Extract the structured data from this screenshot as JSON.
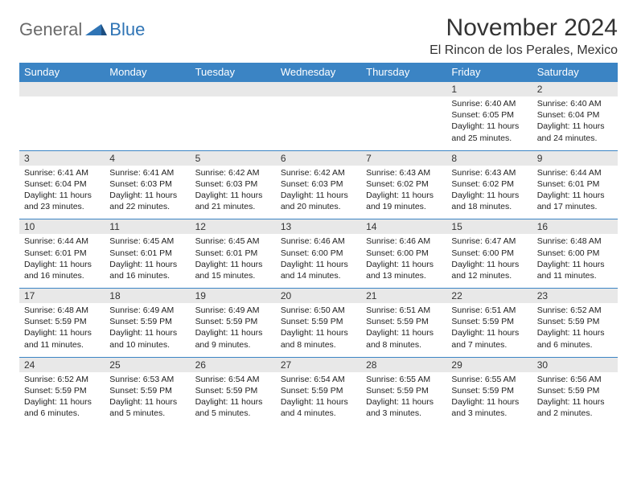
{
  "logo": {
    "general": "General",
    "blue": "Blue"
  },
  "title": "November 2024",
  "location": "El Rincon de los Perales, Mexico",
  "colors": {
    "header_bg": "#3b84c4",
    "header_fg": "#ffffff",
    "daynum_bg": "#e8e8e8",
    "row_border": "#3b84c4",
    "text": "#222222",
    "logo_gray": "#6a6a6a",
    "logo_blue": "#2f74b5",
    "page_bg": "#ffffff"
  },
  "dayNames": [
    "Sunday",
    "Monday",
    "Tuesday",
    "Wednesday",
    "Thursday",
    "Friday",
    "Saturday"
  ],
  "weeks": [
    [
      {
        "n": "",
        "sunrise": "",
        "sunset": "",
        "daylight": ""
      },
      {
        "n": "",
        "sunrise": "",
        "sunset": "",
        "daylight": ""
      },
      {
        "n": "",
        "sunrise": "",
        "sunset": "",
        "daylight": ""
      },
      {
        "n": "",
        "sunrise": "",
        "sunset": "",
        "daylight": ""
      },
      {
        "n": "",
        "sunrise": "",
        "sunset": "",
        "daylight": ""
      },
      {
        "n": "1",
        "sunrise": "Sunrise: 6:40 AM",
        "sunset": "Sunset: 6:05 PM",
        "daylight": "Daylight: 11 hours and 25 minutes."
      },
      {
        "n": "2",
        "sunrise": "Sunrise: 6:40 AM",
        "sunset": "Sunset: 6:04 PM",
        "daylight": "Daylight: 11 hours and 24 minutes."
      }
    ],
    [
      {
        "n": "3",
        "sunrise": "Sunrise: 6:41 AM",
        "sunset": "Sunset: 6:04 PM",
        "daylight": "Daylight: 11 hours and 23 minutes."
      },
      {
        "n": "4",
        "sunrise": "Sunrise: 6:41 AM",
        "sunset": "Sunset: 6:03 PM",
        "daylight": "Daylight: 11 hours and 22 minutes."
      },
      {
        "n": "5",
        "sunrise": "Sunrise: 6:42 AM",
        "sunset": "Sunset: 6:03 PM",
        "daylight": "Daylight: 11 hours and 21 minutes."
      },
      {
        "n": "6",
        "sunrise": "Sunrise: 6:42 AM",
        "sunset": "Sunset: 6:03 PM",
        "daylight": "Daylight: 11 hours and 20 minutes."
      },
      {
        "n": "7",
        "sunrise": "Sunrise: 6:43 AM",
        "sunset": "Sunset: 6:02 PM",
        "daylight": "Daylight: 11 hours and 19 minutes."
      },
      {
        "n": "8",
        "sunrise": "Sunrise: 6:43 AM",
        "sunset": "Sunset: 6:02 PM",
        "daylight": "Daylight: 11 hours and 18 minutes."
      },
      {
        "n": "9",
        "sunrise": "Sunrise: 6:44 AM",
        "sunset": "Sunset: 6:01 PM",
        "daylight": "Daylight: 11 hours and 17 minutes."
      }
    ],
    [
      {
        "n": "10",
        "sunrise": "Sunrise: 6:44 AM",
        "sunset": "Sunset: 6:01 PM",
        "daylight": "Daylight: 11 hours and 16 minutes."
      },
      {
        "n": "11",
        "sunrise": "Sunrise: 6:45 AM",
        "sunset": "Sunset: 6:01 PM",
        "daylight": "Daylight: 11 hours and 16 minutes."
      },
      {
        "n": "12",
        "sunrise": "Sunrise: 6:45 AM",
        "sunset": "Sunset: 6:01 PM",
        "daylight": "Daylight: 11 hours and 15 minutes."
      },
      {
        "n": "13",
        "sunrise": "Sunrise: 6:46 AM",
        "sunset": "Sunset: 6:00 PM",
        "daylight": "Daylight: 11 hours and 14 minutes."
      },
      {
        "n": "14",
        "sunrise": "Sunrise: 6:46 AM",
        "sunset": "Sunset: 6:00 PM",
        "daylight": "Daylight: 11 hours and 13 minutes."
      },
      {
        "n": "15",
        "sunrise": "Sunrise: 6:47 AM",
        "sunset": "Sunset: 6:00 PM",
        "daylight": "Daylight: 11 hours and 12 minutes."
      },
      {
        "n": "16",
        "sunrise": "Sunrise: 6:48 AM",
        "sunset": "Sunset: 6:00 PM",
        "daylight": "Daylight: 11 hours and 11 minutes."
      }
    ],
    [
      {
        "n": "17",
        "sunrise": "Sunrise: 6:48 AM",
        "sunset": "Sunset: 5:59 PM",
        "daylight": "Daylight: 11 hours and 11 minutes."
      },
      {
        "n": "18",
        "sunrise": "Sunrise: 6:49 AM",
        "sunset": "Sunset: 5:59 PM",
        "daylight": "Daylight: 11 hours and 10 minutes."
      },
      {
        "n": "19",
        "sunrise": "Sunrise: 6:49 AM",
        "sunset": "Sunset: 5:59 PM",
        "daylight": "Daylight: 11 hours and 9 minutes."
      },
      {
        "n": "20",
        "sunrise": "Sunrise: 6:50 AM",
        "sunset": "Sunset: 5:59 PM",
        "daylight": "Daylight: 11 hours and 8 minutes."
      },
      {
        "n": "21",
        "sunrise": "Sunrise: 6:51 AM",
        "sunset": "Sunset: 5:59 PM",
        "daylight": "Daylight: 11 hours and 8 minutes."
      },
      {
        "n": "22",
        "sunrise": "Sunrise: 6:51 AM",
        "sunset": "Sunset: 5:59 PM",
        "daylight": "Daylight: 11 hours and 7 minutes."
      },
      {
        "n": "23",
        "sunrise": "Sunrise: 6:52 AM",
        "sunset": "Sunset: 5:59 PM",
        "daylight": "Daylight: 11 hours and 6 minutes."
      }
    ],
    [
      {
        "n": "24",
        "sunrise": "Sunrise: 6:52 AM",
        "sunset": "Sunset: 5:59 PM",
        "daylight": "Daylight: 11 hours and 6 minutes."
      },
      {
        "n": "25",
        "sunrise": "Sunrise: 6:53 AM",
        "sunset": "Sunset: 5:59 PM",
        "daylight": "Daylight: 11 hours and 5 minutes."
      },
      {
        "n": "26",
        "sunrise": "Sunrise: 6:54 AM",
        "sunset": "Sunset: 5:59 PM",
        "daylight": "Daylight: 11 hours and 5 minutes."
      },
      {
        "n": "27",
        "sunrise": "Sunrise: 6:54 AM",
        "sunset": "Sunset: 5:59 PM",
        "daylight": "Daylight: 11 hours and 4 minutes."
      },
      {
        "n": "28",
        "sunrise": "Sunrise: 6:55 AM",
        "sunset": "Sunset: 5:59 PM",
        "daylight": "Daylight: 11 hours and 3 minutes."
      },
      {
        "n": "29",
        "sunrise": "Sunrise: 6:55 AM",
        "sunset": "Sunset: 5:59 PM",
        "daylight": "Daylight: 11 hours and 3 minutes."
      },
      {
        "n": "30",
        "sunrise": "Sunrise: 6:56 AM",
        "sunset": "Sunset: 5:59 PM",
        "daylight": "Daylight: 11 hours and 2 minutes."
      }
    ]
  ]
}
